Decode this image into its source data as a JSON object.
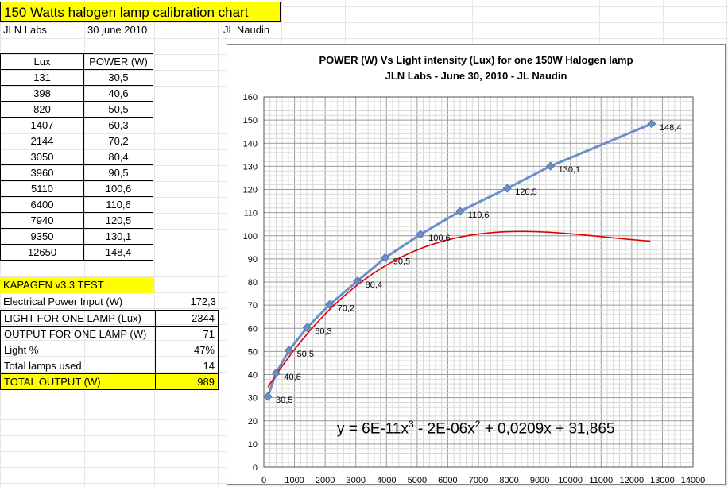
{
  "sheet": {
    "title": "150 Watts halogen lamp calibration chart",
    "org": "JLN Labs",
    "date": "30 june 2010",
    "author": "JL Naudin"
  },
  "data_table": {
    "headers": [
      "Lux",
      "POWER (W)"
    ],
    "rows": [
      [
        "131",
        "30,5"
      ],
      [
        "398",
        "40,6"
      ],
      [
        "820",
        "50,5"
      ],
      [
        "1407",
        "60,3"
      ],
      [
        "2144",
        "70,2"
      ],
      [
        "3050",
        "80,4"
      ],
      [
        "3960",
        "90,5"
      ],
      [
        "5110",
        "100,6"
      ],
      [
        "6400",
        "110,6"
      ],
      [
        "7940",
        "120,5"
      ],
      [
        "9350",
        "130,1"
      ],
      [
        "12650",
        "148,4"
      ]
    ]
  },
  "test": {
    "heading": "KAPAGEN v3.3 TEST",
    "input_label": "Electrical Power Input (W)",
    "input_value": "172,3",
    "rows": [
      {
        "label": "LIGHT FOR ONE LAMP (Lux)",
        "value": "2344"
      },
      {
        "label": "OUTPUT FOR ONE LAMP (W)",
        "value": "71"
      },
      {
        "label": "Light %",
        "value": "47%"
      },
      {
        "label": "Total lamps used",
        "value": "14"
      }
    ],
    "total_label": "TOTAL OUTPUT (W)",
    "total_value": "989"
  },
  "chart_data": {
    "type": "scatter",
    "title": "POWER (W) Vs Light intensity (Lux) for one 150W Halogen lamp",
    "subtitle": "JLN Labs - June 30, 2010 - JL Naudin",
    "x": [
      131,
      398,
      820,
      1407,
      2144,
      3050,
      3960,
      5110,
      6400,
      7940,
      9350,
      12650
    ],
    "series": [
      {
        "values": [
          30.5,
          40.6,
          50.5,
          60.3,
          70.2,
          80.4,
          90.5,
          100.6,
          110.6,
          120.5,
          130.1,
          148.4
        ],
        "data_labels": [
          "30,5",
          "40,6",
          "50,5",
          "60,3",
          "70,2",
          "80,4",
          "90,5",
          "100,6",
          "110,6",
          "120,5",
          "130,1",
          "148,4"
        ],
        "color": "#6a8fc8"
      }
    ],
    "trendline": {
      "type": "polynomial-3",
      "coefficients": [
        6e-11,
        -2e-06,
        0.0209,
        31.865
      ],
      "equation": "y = 6E-11x",
      "equation_parts": [
        "y = 6E-11x",
        "3",
        " - 2E-06x",
        "2",
        " + 0,0209x + 31,865"
      ],
      "color": "#e00000"
    },
    "xlim": [
      0,
      14000
    ],
    "ylim": [
      0,
      160
    ],
    "xticks": [
      "0",
      "1000",
      "2000",
      "3000",
      "4000",
      "5000",
      "6000",
      "7000",
      "8000",
      "9000",
      "10000",
      "11000",
      "12000",
      "13000",
      "14000"
    ],
    "yticks": [
      "0",
      "10",
      "20",
      "30",
      "40",
      "50",
      "60",
      "70",
      "80",
      "90",
      "100",
      "110",
      "120",
      "130",
      "140",
      "150",
      "160"
    ],
    "grid": true,
    "minor_grid": true
  }
}
